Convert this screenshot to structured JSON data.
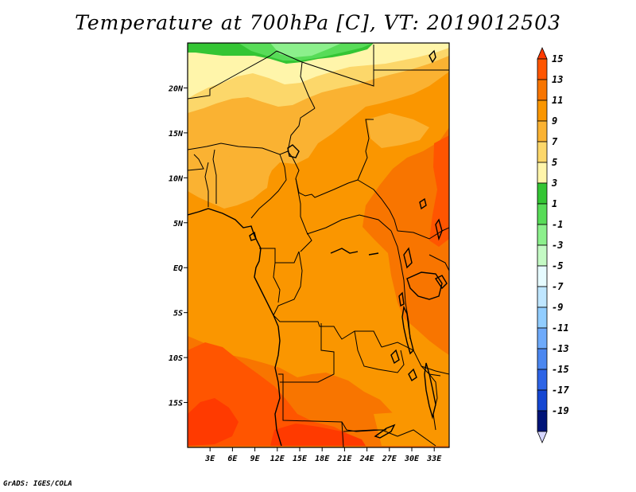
{
  "title": "Temperature at 700hPa [C], VT: 2019012503",
  "credit": "GrADS: IGES/COLA",
  "map": {
    "lat_labels": [
      "20N",
      "15N",
      "10N",
      "5N",
      "EQ",
      "5S",
      "10S",
      "15S"
    ],
    "lat_values": [
      20,
      15,
      10,
      5,
      0,
      -5,
      -10,
      -15
    ],
    "lon_labels": [
      "3E",
      "6E",
      "9E",
      "12E",
      "15E",
      "18E",
      "21E",
      "24E",
      "27E",
      "30E",
      "33E"
    ],
    "lon_values": [
      3,
      6,
      9,
      12,
      15,
      18,
      21,
      24,
      27,
      30,
      33
    ],
    "lon_range": [
      0,
      35
    ],
    "lat_range": [
      -20,
      25
    ]
  },
  "colorbar": {
    "labels": [
      "15",
      "13",
      "11",
      "9",
      "7",
      "5",
      "3",
      "1",
      "-1",
      "-3",
      "-5",
      "-7",
      "-9",
      "-11",
      "-13",
      "-15",
      "-17",
      "-19"
    ],
    "colors": [
      "#ff3a00",
      "#ff5500",
      "#f87500",
      "#fa9600",
      "#fab232",
      "#fcd76a",
      "#fff5aa",
      "#34c534",
      "#58dc58",
      "#8cf08c",
      "#c4fac4",
      "#e6fbff",
      "#bfe6ff",
      "#91cdff",
      "#6eaafa",
      "#4b87f0",
      "#2d64e6",
      "#1446d2",
      "#001478",
      "#d6d6ff"
    ]
  }
}
